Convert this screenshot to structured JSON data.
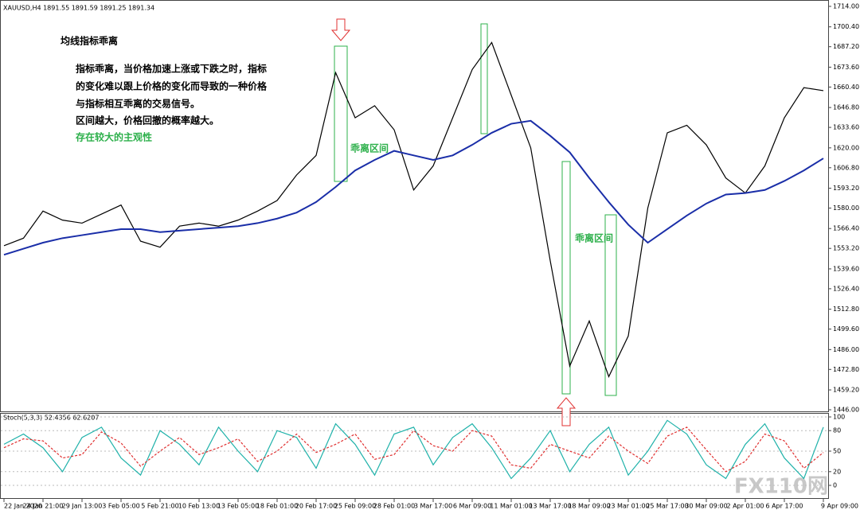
{
  "chart_data": [
    {
      "type": "line",
      "title": "XAUUSD,H4  1891.55 1891.59 1891.25 1891.34",
      "annotations": {
        "heading": "均线指标乖离",
        "lines": [
          "指标乖离，当价格加速上涨或下跌之时，指标",
          "的变化难以跟上价格的变化而导致的一种价格",
          "与指标相互乖离的交易信号。",
          "区间越大，价格回撤的概率越大。"
        ],
        "note": "存在较大的主观性",
        "zone_labels": [
          "乖离区间",
          "乖离区间"
        ]
      },
      "categories": [
        "22 Jan 2020",
        null,
        "24 Jan 21:00",
        null,
        "29 Jan 13:00",
        null,
        "3 Feb 05:00",
        null,
        "5 Feb 21:00",
        null,
        "10 Feb 13:00",
        null,
        "13 Feb 05:00",
        null,
        "18 Feb 01:00",
        null,
        "20 Feb 17:00",
        null,
        "25 Feb 09:00",
        null,
        "28 Feb 01:00",
        null,
        "3 Mar 17:00",
        null,
        "6 Mar 09:00",
        null,
        "11 Mar 01:00",
        null,
        "13 Mar 17:00",
        null,
        "18 Mar 09:00",
        null,
        "23 Mar 01:00",
        null,
        "25 Mar 17:00",
        null,
        "30 Mar 09:00",
        null,
        "2 Apr 01:00",
        null,
        "6 Apr 17:00",
        null,
        "9 Apr 09:00"
      ],
      "series": [
        {
          "color": "#000000",
          "values": [
            1555,
            1560,
            1578,
            1572,
            1570,
            1576,
            1582,
            1558,
            1554,
            1568,
            1570,
            1568,
            1572,
            1578,
            1585,
            1602,
            1615,
            1670,
            1640,
            1648,
            1632,
            1592,
            1608,
            1640,
            1672,
            1690,
            1655,
            1620,
            1545,
            1475,
            1505,
            1468,
            1495,
            1580,
            1630,
            1635,
            1622,
            1600,
            1590,
            1608,
            1640,
            1660,
            1658
          ]
        },
        {
          "color": "#1a2ea8",
          "values": [
            1549,
            1553,
            1557,
            1560,
            1562,
            1564,
            1566,
            1566,
            1564,
            1565,
            1566,
            1567,
            1568,
            1570,
            1573,
            1577,
            1584,
            1594,
            1605,
            1612,
            1618,
            1615,
            1612,
            1615,
            1622,
            1630,
            1636,
            1638,
            1628,
            1617,
            1600,
            1584,
            1569,
            1557,
            1566,
            1575,
            1583,
            1589,
            1590,
            1592,
            1598,
            1605,
            1613
          ]
        }
      ],
      "ylim": [
        1446,
        1714
      ],
      "yticks": [
        {
          "value": 1714,
          "label": "1714.00"
        },
        {
          "value": 1700.4,
          "label": "1700.40"
        },
        {
          "value": 1687.2,
          "label": "1687.20"
        },
        {
          "value": 1673.6,
          "label": "1673.60"
        },
        {
          "value": 1660.4,
          "label": "1660.40"
        },
        {
          "value": 1646.8,
          "label": "1646.80"
        },
        {
          "value": 1633.6,
          "label": "1633.60"
        },
        {
          "value": 1620,
          "label": "1620.00"
        },
        {
          "value": 1606.8,
          "label": "1606.80"
        },
        {
          "value": 1593.2,
          "label": "1593.20"
        },
        {
          "value": 1580,
          "label": "1580.00"
        },
        {
          "value": 1566.4,
          "label": "1566.40"
        },
        {
          "value": 1553.2,
          "label": "1553.20"
        },
        {
          "value": 1539.6,
          "label": "1539.60"
        },
        {
          "value": 1526.4,
          "label": "1526.40"
        },
        {
          "value": 1512.8,
          "label": "1512.80"
        },
        {
          "value": 1499.6,
          "label": "1499.60"
        },
        {
          "value": 1486,
          "label": "1486.00"
        },
        {
          "value": 1472.8,
          "label": "1472.80"
        },
        {
          "value": 1459.2,
          "label": "1459.20"
        },
        {
          "value": 1446,
          "label": "1446.00"
        }
      ],
      "grid": false
    },
    {
      "type": "line",
      "title": "Stoch(5,3,3) 52.4356 62.6207",
      "series": [
        {
          "color": "#20b2aa",
          "dash": false,
          "values": [
            60,
            75,
            55,
            20,
            70,
            85,
            40,
            15,
            80,
            60,
            30,
            85,
            50,
            20,
            80,
            70,
            25,
            90,
            60,
            15,
            75,
            85,
            30,
            70,
            90,
            55,
            10,
            40,
            80,
            20,
            60,
            85,
            15,
            50,
            95,
            75,
            30,
            10,
            60,
            90,
            40,
            10,
            85
          ]
        },
        {
          "color": "#e03030",
          "dash": true,
          "values": [
            55,
            68,
            65,
            40,
            45,
            78,
            62,
            28,
            50,
            70,
            45,
            55,
            68,
            35,
            50,
            75,
            48,
            60,
            75,
            38,
            45,
            80,
            58,
            50,
            80,
            72,
            30,
            25,
            60,
            50,
            40,
            72,
            50,
            32,
            72,
            85,
            52,
            20,
            35,
            75,
            65,
            25,
            48
          ]
        }
      ],
      "ylim": [
        0,
        100
      ],
      "yticks": [
        100,
        80,
        50,
        20,
        0
      ],
      "grid": true
    },
    {
      "watermark": "FX110网"
    }
  ]
}
